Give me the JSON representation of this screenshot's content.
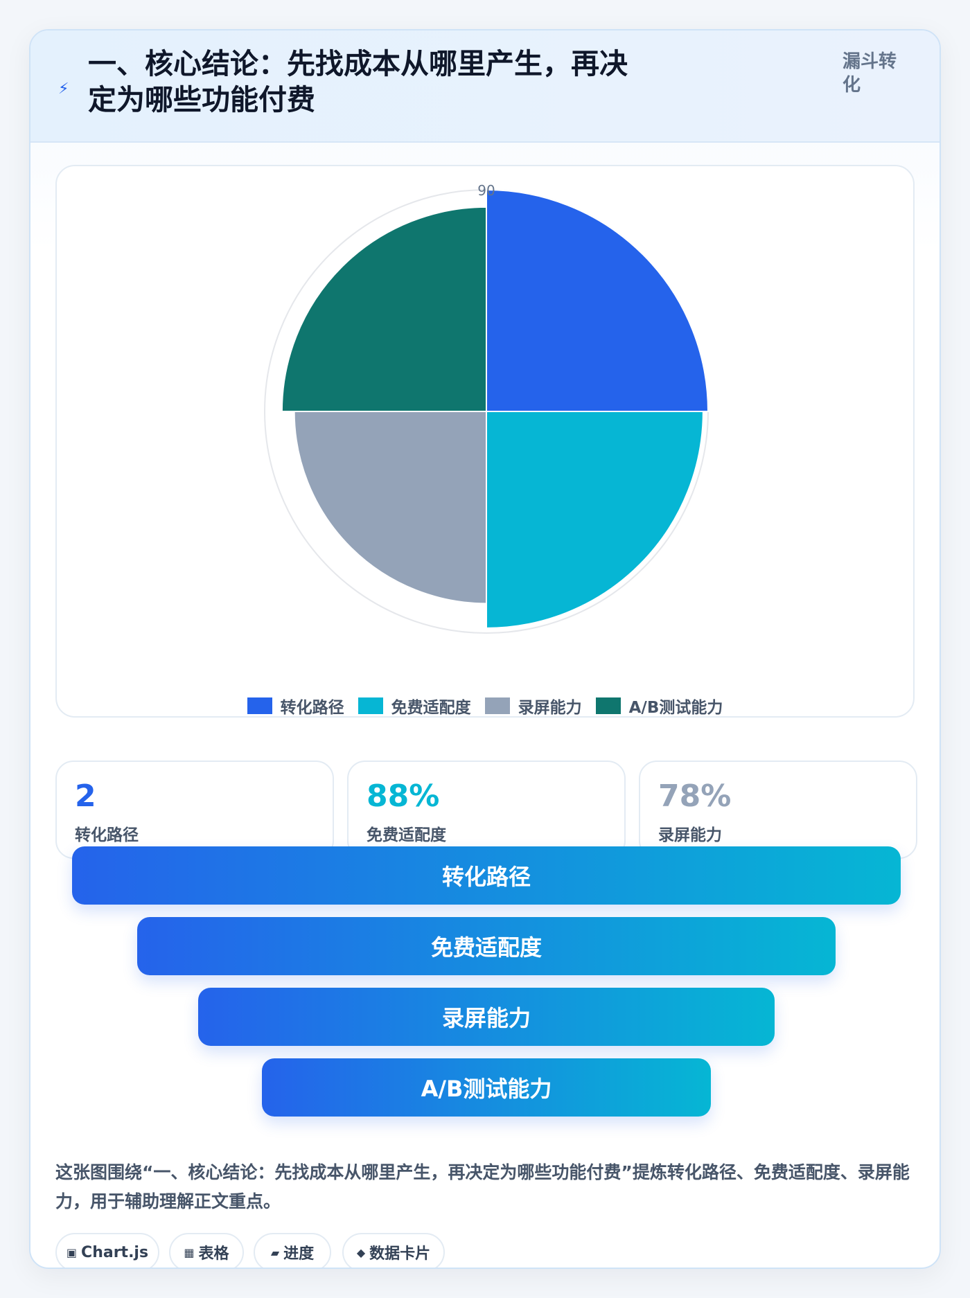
{
  "header": {
    "title": "一、核心结论：先找成本从哪里产生，再决定为哪些功能付费",
    "tag": "漏斗转化"
  },
  "chart_data": {
    "type": "polarArea",
    "title": "",
    "categories": [
      "转化路径",
      "免费适配度",
      "录屏能力",
      "A/B测试能力"
    ],
    "values": [
      90,
      88,
      78,
      83
    ],
    "colors": [
      "#2563eb",
      "#06b6d4",
      "#94a3b8",
      "#0f766e"
    ],
    "r_max": 90,
    "tick_labels": [
      "90"
    ],
    "legend": "bottom"
  },
  "stats": [
    {
      "value": "2",
      "label": "转化路径",
      "color": "#2563eb"
    },
    {
      "value": "88%",
      "label": "免费适配度",
      "color": "#06b6d4"
    },
    {
      "value": "78%",
      "label": "录屏能力",
      "color": "#94a3b8"
    }
  ],
  "funnel": [
    "转化路径",
    "免费适配度",
    "录屏能力",
    "A/B测试能力"
  ],
  "description": "这张图围绕“一、核心结论：先找成本从哪里产生，再决定为哪些功能付费”提炼转化路径、免费适配度、录屏能力，用于辅助理解正文重点。",
  "chips": [
    {
      "icon": "▣",
      "label": "Chart.js"
    },
    {
      "icon": "▦",
      "label": "表格"
    },
    {
      "icon": "▰",
      "label": "进度"
    },
    {
      "icon": "◆",
      "label": "数据卡片"
    }
  ]
}
